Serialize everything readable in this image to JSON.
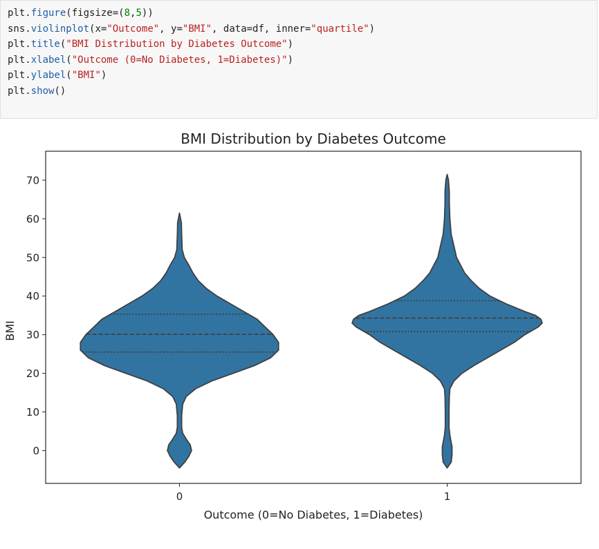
{
  "code_cell": {
    "lines": [
      [
        {
          "t": "plt.",
          "c": ""
        },
        {
          "t": "figure",
          "c": "fn"
        },
        {
          "t": "(figsize=(",
          "c": ""
        },
        {
          "t": "8",
          "c": "num"
        },
        {
          "t": ",",
          "c": ""
        },
        {
          "t": "5",
          "c": "num"
        },
        {
          "t": "))",
          "c": ""
        }
      ],
      [
        {
          "t": "sns.",
          "c": ""
        },
        {
          "t": "violinplot",
          "c": "fn"
        },
        {
          "t": "(x=",
          "c": ""
        },
        {
          "t": "\"Outcome\"",
          "c": "str"
        },
        {
          "t": ", y=",
          "c": ""
        },
        {
          "t": "\"BMI\"",
          "c": "str"
        },
        {
          "t": ", data=df, inner=",
          "c": ""
        },
        {
          "t": "\"quartile\"",
          "c": "str"
        },
        {
          "t": ")",
          "c": ""
        }
      ],
      [
        {
          "t": "plt.",
          "c": ""
        },
        {
          "t": "title",
          "c": "fn"
        },
        {
          "t": "(",
          "c": ""
        },
        {
          "t": "\"BMI Distribution by Diabetes Outcome\"",
          "c": "str"
        },
        {
          "t": ")",
          "c": ""
        }
      ],
      [
        {
          "t": "plt.",
          "c": ""
        },
        {
          "t": "xlabel",
          "c": "fn"
        },
        {
          "t": "(",
          "c": ""
        },
        {
          "t": "\"Outcome (0=No Diabetes, 1=Diabetes)\"",
          "c": "str"
        },
        {
          "t": ")",
          "c": ""
        }
      ],
      [
        {
          "t": "plt.",
          "c": ""
        },
        {
          "t": "ylabel",
          "c": "fn"
        },
        {
          "t": "(",
          "c": ""
        },
        {
          "t": "\"BMI\"",
          "c": "str"
        },
        {
          "t": ")",
          "c": ""
        }
      ],
      [
        {
          "t": "plt.",
          "c": ""
        },
        {
          "t": "show",
          "c": "fn"
        },
        {
          "t": "()",
          "c": ""
        }
      ]
    ]
  },
  "chart_data": {
    "type": "violin",
    "title": "BMI Distribution by Diabetes Outcome",
    "xlabel": "Outcome (0=No Diabetes, 1=Diabetes)",
    "ylabel": "BMI",
    "categories": [
      "0",
      "1"
    ],
    "ylim": [
      -8.5,
      77.5
    ],
    "yticks": [
      0,
      10,
      20,
      30,
      40,
      50,
      60,
      70
    ],
    "grid": false,
    "fill_color": "#3274a1",
    "edge_color": "#3f3f3f",
    "violins": [
      {
        "category": "0",
        "quartiles": [
          25.5,
          30.1,
          35.3
        ],
        "profile": [
          [
            -4.5,
            0.0
          ],
          [
            -3.0,
            0.02
          ],
          [
            -1.5,
            0.035
          ],
          [
            0.0,
            0.045
          ],
          [
            1.5,
            0.04
          ],
          [
            3.0,
            0.025
          ],
          [
            4.5,
            0.012
          ],
          [
            6.0,
            0.008
          ],
          [
            9.0,
            0.008
          ],
          [
            12.0,
            0.012
          ],
          [
            14.0,
            0.025
          ],
          [
            16.0,
            0.06
          ],
          [
            18.0,
            0.12
          ],
          [
            20.0,
            0.2
          ],
          [
            22.0,
            0.28
          ],
          [
            24.0,
            0.34
          ],
          [
            26.0,
            0.37
          ],
          [
            28.0,
            0.37
          ],
          [
            30.0,
            0.35
          ],
          [
            32.0,
            0.32
          ],
          [
            34.0,
            0.29
          ],
          [
            36.0,
            0.24
          ],
          [
            38.0,
            0.19
          ],
          [
            40.0,
            0.14
          ],
          [
            42.0,
            0.1
          ],
          [
            44.0,
            0.07
          ],
          [
            46.0,
            0.05
          ],
          [
            48.0,
            0.035
          ],
          [
            50.0,
            0.018
          ],
          [
            52.0,
            0.01
          ],
          [
            56.0,
            0.008
          ],
          [
            59.0,
            0.007
          ],
          [
            61.5,
            0.0
          ]
        ]
      },
      {
        "category": "1",
        "quartiles": [
          30.8,
          34.3,
          38.8
        ],
        "profile": [
          [
            -4.5,
            0.0
          ],
          [
            -3.0,
            0.015
          ],
          [
            -1.0,
            0.018
          ],
          [
            1.0,
            0.018
          ],
          [
            2.5,
            0.014
          ],
          [
            4.0,
            0.01
          ],
          [
            6.0,
            0.007
          ],
          [
            10.0,
            0.007
          ],
          [
            14.0,
            0.008
          ],
          [
            16.0,
            0.01
          ],
          [
            18.0,
            0.025
          ],
          [
            20.0,
            0.055
          ],
          [
            22.0,
            0.1
          ],
          [
            24.0,
            0.15
          ],
          [
            26.0,
            0.2
          ],
          [
            28.0,
            0.25
          ],
          [
            30.0,
            0.29
          ],
          [
            32.0,
            0.34
          ],
          [
            33.0,
            0.355
          ],
          [
            34.0,
            0.35
          ],
          [
            35.0,
            0.33
          ],
          [
            36.0,
            0.29
          ],
          [
            38.0,
            0.22
          ],
          [
            40.0,
            0.16
          ],
          [
            42.0,
            0.12
          ],
          [
            44.0,
            0.09
          ],
          [
            46.0,
            0.065
          ],
          [
            48.0,
            0.05
          ],
          [
            50.0,
            0.035
          ],
          [
            53.0,
            0.025
          ],
          [
            56.0,
            0.015
          ],
          [
            60.0,
            0.01
          ],
          [
            64.0,
            0.008
          ],
          [
            67.0,
            0.008
          ],
          [
            70.0,
            0.005
          ],
          [
            71.5,
            0.0
          ]
        ]
      }
    ]
  }
}
